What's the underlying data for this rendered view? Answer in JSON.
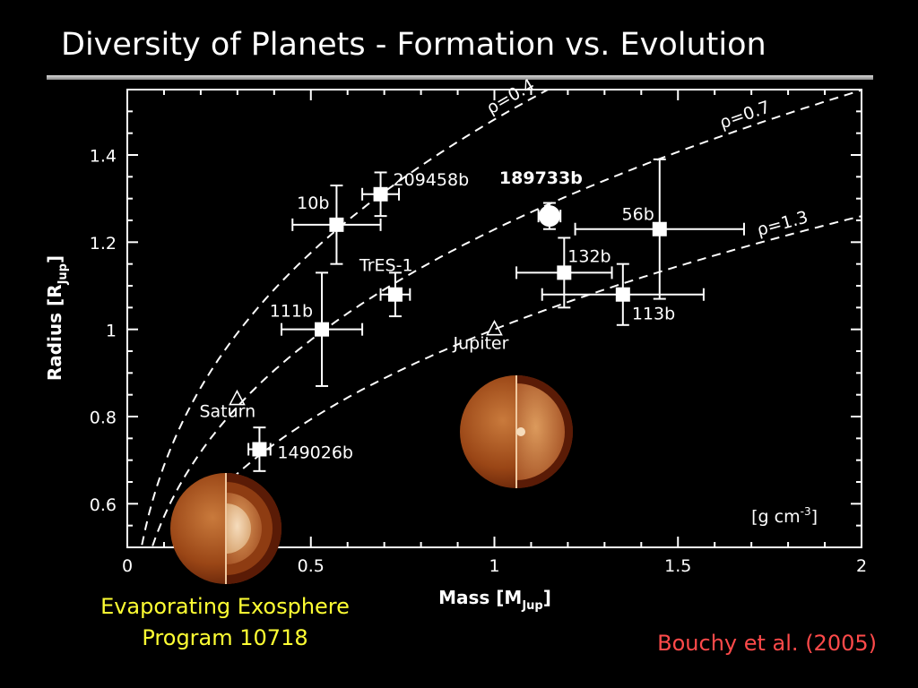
{
  "slide": {
    "title": "Diversity of Planets - Formation vs. Evolution",
    "caption_line1": "Evaporating Exosphere",
    "caption_line2": "Program 10718",
    "credit": "Bouchy et al. (2005)",
    "colors": {
      "background": "#000000",
      "plot_ink": "#ffffff",
      "caption": "#ffff33",
      "credit": "#ff4a4a",
      "planet_dark": "#6b2306",
      "planet_mid": "#b5642a",
      "planet_light": "#e9c6a0"
    }
  },
  "planet_icons": [
    {
      "name": "evaporating-planet-icon"
    },
    {
      "name": "giant-planet-icon"
    }
  ],
  "chart_data": {
    "type": "scatter",
    "xlabel": "Mass [M",
    "xlabel_sub": "Jup",
    "xlabel_end": "]",
    "ylabel": "Radius [R",
    "ylabel_sub": "Jup",
    "ylabel_end": "]",
    "units_label": "[g cm",
    "units_sup": "-3",
    "units_end": "]",
    "xlim": [
      0,
      2
    ],
    "ylim": [
      0.5,
      1.55
    ],
    "xticks": [
      0,
      0.5,
      1,
      1.5,
      2
    ],
    "xtick_labels": [
      "0",
      "0.5",
      "1",
      "1.5",
      "2"
    ],
    "yticks": [
      0.6,
      0.8,
      1.0,
      1.2,
      1.4
    ],
    "ytick_labels": [
      "0.6",
      "0.8",
      "1",
      "1.2",
      "1.4"
    ],
    "grid": false,
    "points": [
      {
        "label": "209458b",
        "x": 0.69,
        "y": 1.31,
        "xerr": 0.05,
        "yerr": 0.05,
        "marker": "square"
      },
      {
        "label": "10b",
        "x": 0.57,
        "y": 1.24,
        "xerr": 0.12,
        "yerr": 0.09,
        "marker": "square"
      },
      {
        "label": "TrES-1",
        "x": 0.73,
        "y": 1.08,
        "xerr": 0.04,
        "yerr": 0.05,
        "marker": "square"
      },
      {
        "label": "111b",
        "x": 0.53,
        "y": 1.0,
        "xerr": 0.11,
        "yerr": 0.13,
        "marker": "square"
      },
      {
        "label": "149026b",
        "x": 0.36,
        "y": 0.725,
        "xerr": 0.03,
        "yerr": 0.05,
        "marker": "square"
      },
      {
        "label": "189733b",
        "x": 1.15,
        "y": 1.26,
        "xerr": 0.03,
        "yerr": 0.03,
        "marker": "circle"
      },
      {
        "label": "56b",
        "x": 1.45,
        "y": 1.23,
        "xerr": 0.23,
        "yerr": 0.16,
        "marker": "square"
      },
      {
        "label": "132b",
        "x": 1.19,
        "y": 1.13,
        "xerr": 0.13,
        "yerr": 0.08,
        "marker": "square"
      },
      {
        "label": "113b",
        "x": 1.35,
        "y": 1.08,
        "xerr": 0.22,
        "yerr": 0.07,
        "marker": "square"
      },
      {
        "label": "Saturn",
        "x": 0.299,
        "y": 0.84,
        "marker": "triangle"
      },
      {
        "label": "Jupiter",
        "x": 1.0,
        "y": 1.0,
        "marker": "triangle"
      }
    ],
    "density_curves": [
      {
        "label": "ρ=0.4",
        "rho": 0.4
      },
      {
        "label": "ρ=0.7",
        "rho": 0.7
      },
      {
        "label": "ρ=1.3",
        "rho": 1.3
      }
    ]
  }
}
